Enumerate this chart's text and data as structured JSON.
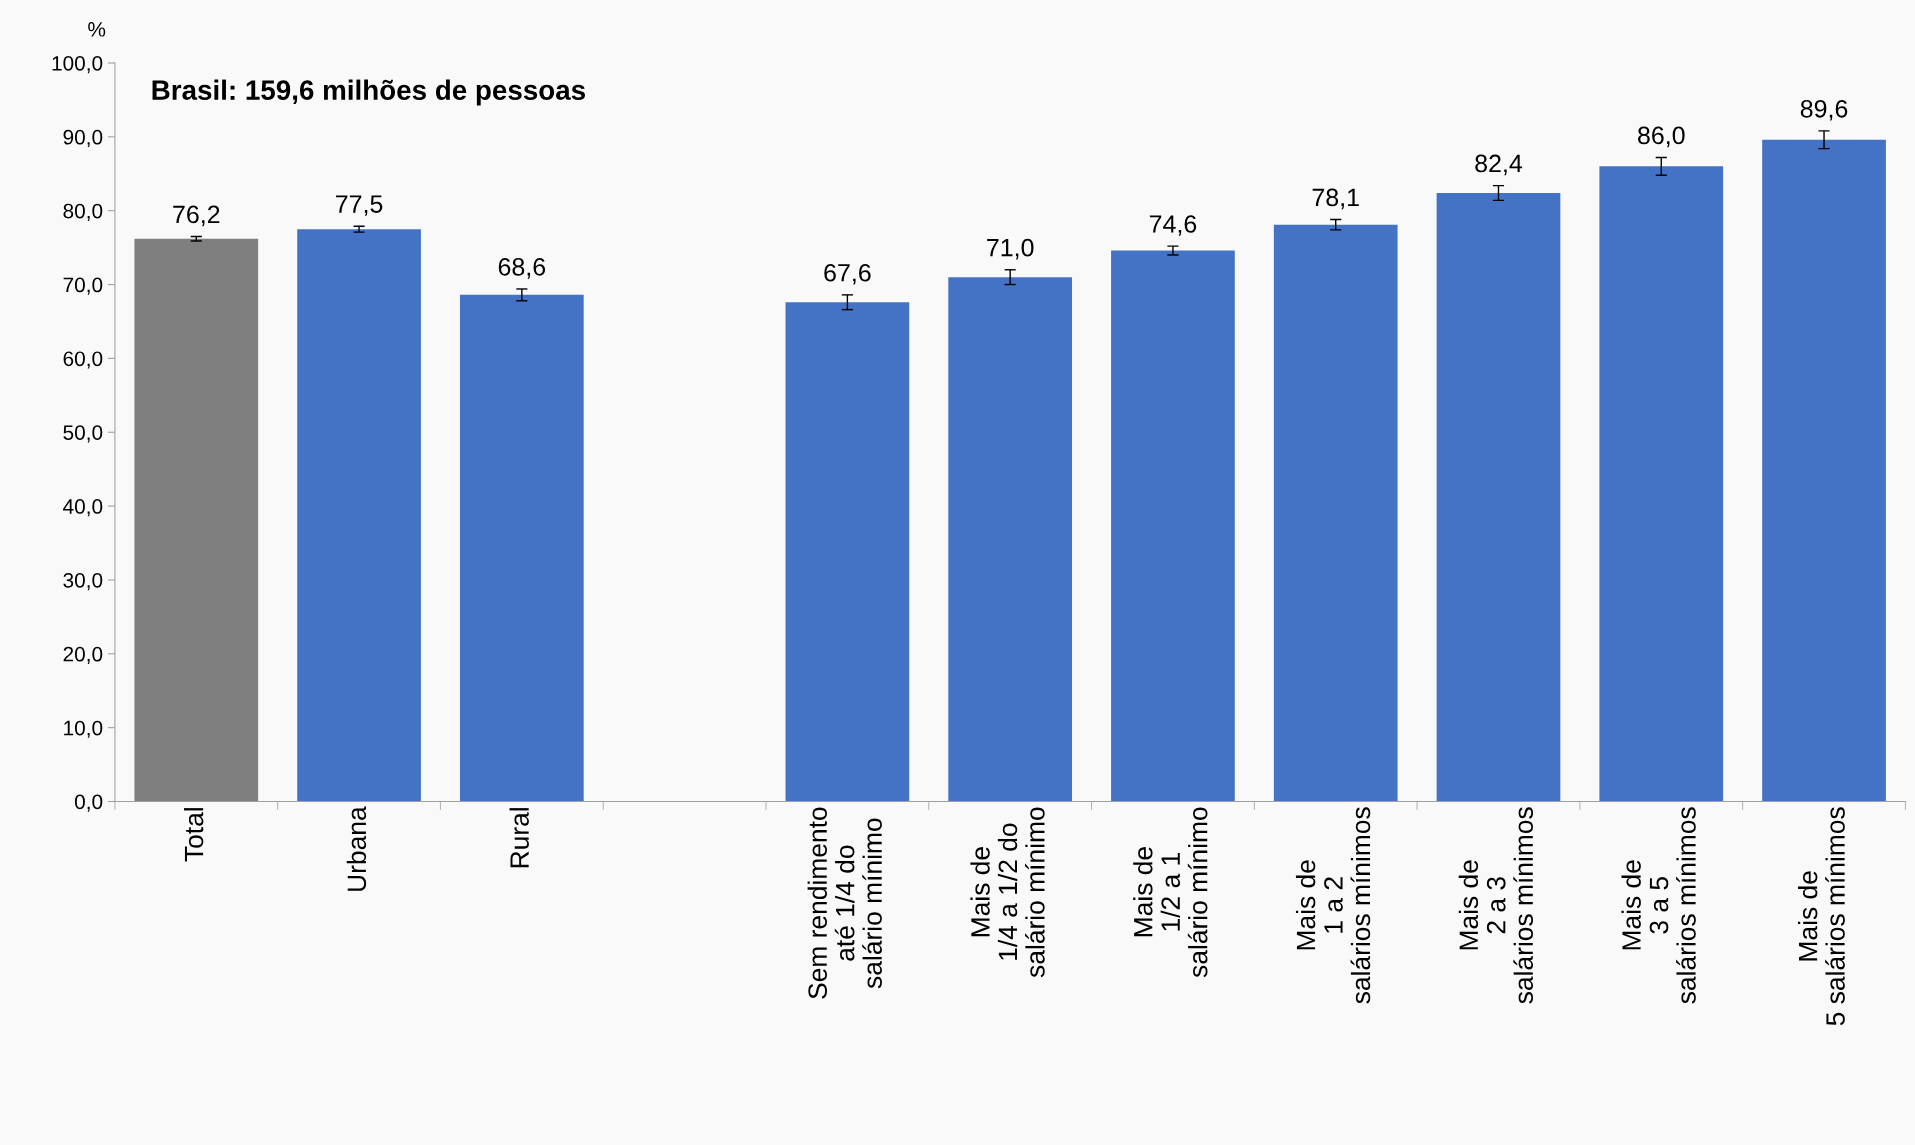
{
  "chart_data": {
    "type": "bar",
    "title": "Brasil: 159,6 milhões de pessoas",
    "ylabel": "%",
    "categories": [
      "Total",
      "Urbana",
      "Rural",
      null,
      "Sem rendimento\naté 1/4 do\nsalário mínimo",
      "Mais de\n1/4 a 1/2 do\nsalário mínimo",
      "Mais de\n1/2 a 1\nsalário mínimo",
      "Mais de\n1 a 2\nsalários mínimos",
      "Mais de\n2 a 3\nsalários mínimos",
      "Mais de\n3 a 5\nsalários mínimos",
      "Mais de\n5 salários mínimos"
    ],
    "values": [
      76.2,
      77.5,
      68.6,
      null,
      67.6,
      71.0,
      74.6,
      78.1,
      82.4,
      86.0,
      89.6
    ],
    "colors": [
      "#7f7f7f",
      "#4472c4",
      "#4472c4",
      null,
      "#4472c4",
      "#4472c4",
      "#4472c4",
      "#4472c4",
      "#4472c4",
      "#4472c4",
      "#4472c4"
    ],
    "errors": [
      0.3,
      0.4,
      0.8,
      null,
      1.0,
      1.0,
      0.6,
      0.7,
      1.0,
      1.2,
      1.2
    ],
    "value_labels": [
      "76,2",
      "77,5",
      "68,6",
      null,
      "67,6",
      "71,0",
      "74,6",
      "78,1",
      "82,4",
      "86,0",
      "89,6"
    ],
    "ylim": [
      0,
      100
    ],
    "yticks": [
      {
        "value": 0,
        "label": "0,0"
      },
      {
        "value": 10,
        "label": "10,0"
      },
      {
        "value": 20,
        "label": "20,0"
      },
      {
        "value": 30,
        "label": "30,0"
      },
      {
        "value": 40,
        "label": "40,0"
      },
      {
        "value": 50,
        "label": "50,0"
      },
      {
        "value": 60,
        "label": "60,0"
      },
      {
        "value": 70,
        "label": "70,0"
      },
      {
        "value": 80,
        "label": "80,0"
      },
      {
        "value": 90,
        "label": "90,0"
      },
      {
        "value": 100,
        "label": "100,0"
      }
    ],
    "grid": false
  }
}
